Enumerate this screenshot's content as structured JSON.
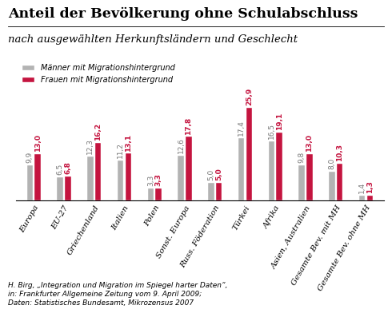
{
  "chart_data": {
    "type": "bar",
    "title": "Anteil der Bevölkerung ohne Schulabschluss",
    "subtitle": "nach ausgewählten Herkunftsländern und Geschlecht",
    "categories": [
      "Europa",
      "EU-27",
      "Griechenland",
      "Italien",
      "Polen",
      "Sonst. Europa",
      "Russ. Föderation",
      "Türkei",
      "Afrika",
      "Asien, Australien",
      "Gesamte Bev. mit MH",
      "Gesamte Bev. ohne MH"
    ],
    "series": [
      {
        "name": "Männer mit Migrationshintergrund",
        "color": "#b3b3b3",
        "values": [
          9.9,
          6.5,
          12.3,
          11.2,
          3.3,
          12.6,
          5.0,
          17.4,
          16.5,
          9.8,
          8.0,
          1.4
        ],
        "value_labels": [
          "9,9",
          "6,5",
          "12,3",
          "11,2",
          "3,3",
          "12,6",
          "5,0",
          "17,4",
          "16,5",
          "9,8",
          "8,0",
          "1,4"
        ]
      },
      {
        "name": "Frauen mit Migrationshintergrund",
        "color": "#c4143f",
        "values": [
          13.0,
          6.8,
          16.2,
          13.1,
          3.3,
          17.8,
          5.0,
          25.9,
          19.1,
          13.0,
          10.3,
          1.3
        ],
        "value_labels": [
          "13,0",
          "6,8",
          "16,2",
          "13,1",
          "3,3",
          "17,8",
          "5,0",
          "25,9",
          "19,1",
          "13,0",
          "10,3",
          "1,3"
        ]
      }
    ],
    "annotations": [
      "H. Birg, „Integration und Migration im Spiegel harter Daten“,",
      "in: Frankfurter Allgemeine Zeitung vom 9. April 2009;",
      "Daten: Statistisches Bundesamt, Mikrozensus 2007"
    ],
    "legend": "upper left",
    "data_labels": true,
    "tick_labels": "x"
  }
}
